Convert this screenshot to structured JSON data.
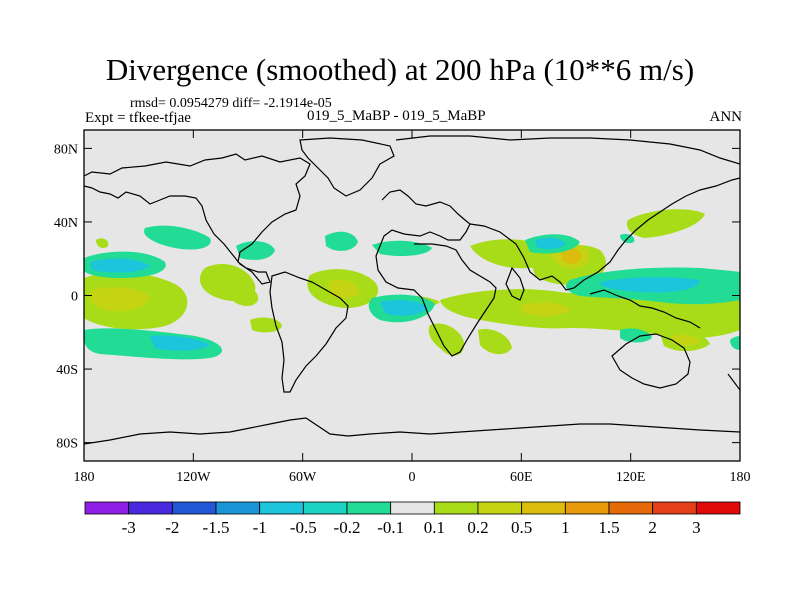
{
  "header": {
    "title": "Divergence (smoothed) at 200 hPa (10**6 m/s)",
    "stats": "rmsd= 0.0954279 diff= -2.1914e-05",
    "experiment": "Expt = tfkee-tfjae",
    "cases": "019_5_MaBP - 019_5_MaBP",
    "season": "ANN"
  },
  "axes": {
    "lat_labels": [
      {
        "lat": 80,
        "text": "80N"
      },
      {
        "lat": 40,
        "text": "40N"
      },
      {
        "lat": 0,
        "text": "0"
      },
      {
        "lat": -40,
        "text": "40S"
      },
      {
        "lat": -80,
        "text": "80S"
      }
    ],
    "lon_labels": [
      {
        "lon": -180,
        "text": "180"
      },
      {
        "lon": -120,
        "text": "120W"
      },
      {
        "lon": -60,
        "text": "60W"
      },
      {
        "lon": 0,
        "text": "0"
      },
      {
        "lon": 60,
        "text": "60E"
      },
      {
        "lon": 120,
        "text": "120E"
      },
      {
        "lon": 180,
        "text": "180"
      }
    ]
  },
  "colorbar": {
    "colors": [
      "#8f1ee6",
      "#4a28e0",
      "#2258d6",
      "#1a96d8",
      "#1cc4dc",
      "#1cd2c0",
      "#22dc96",
      "#e6e6e6",
      "#a8dc18",
      "#c4d412",
      "#dcbc0c",
      "#e69a0a",
      "#e66a0a",
      "#e6401a",
      "#e00a0a"
    ],
    "labels": [
      "-3",
      "-2",
      "-1.5",
      "-1",
      "-0.5",
      "-0.2",
      "-0.1",
      "0.1",
      "0.2",
      "0.5",
      "1",
      "1.5",
      "2",
      "3"
    ]
  },
  "map_background": "#e6e6e6"
}
